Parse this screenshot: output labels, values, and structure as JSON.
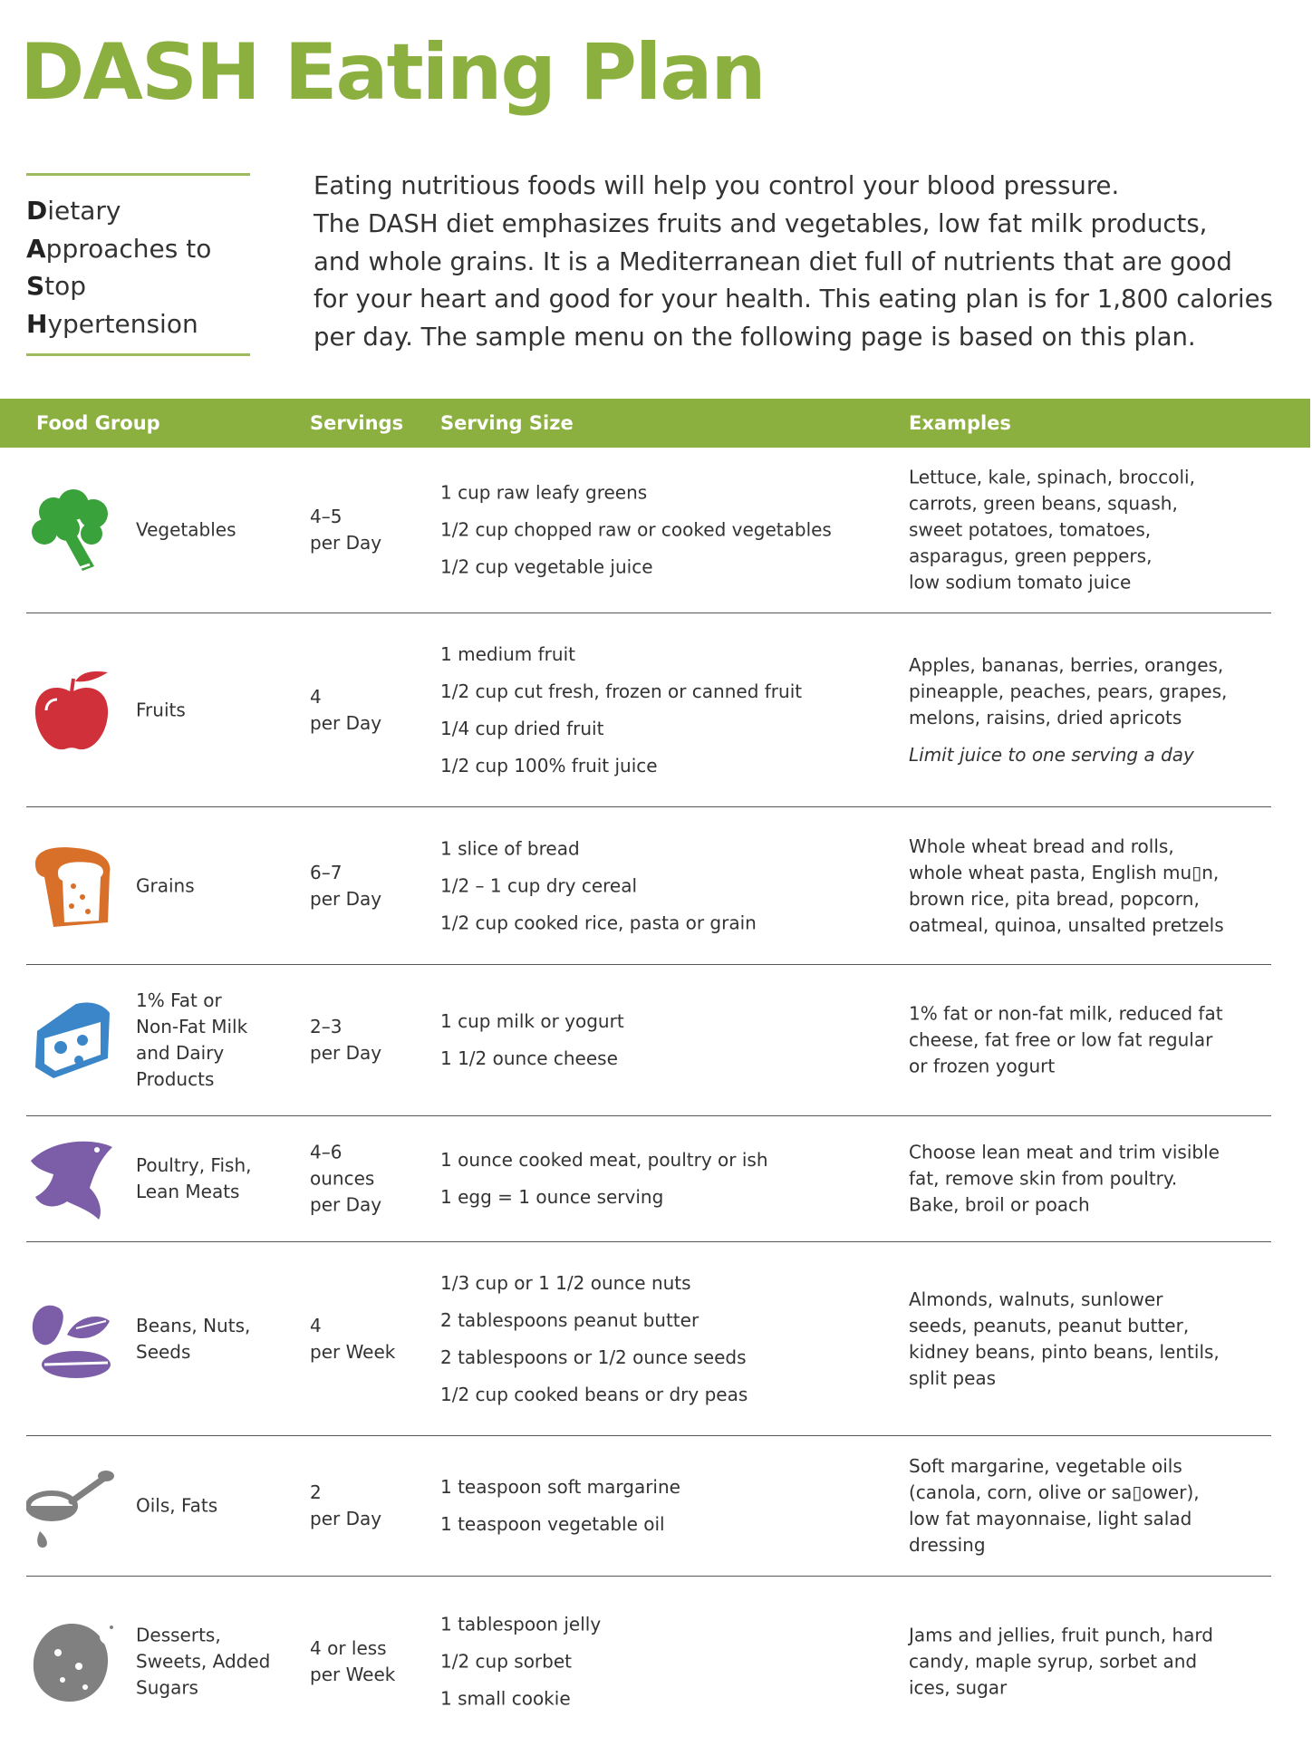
{
  "title": "DASH Eating Plan",
  "acronym": [
    {
      "initial": "D",
      "rest": "ietary"
    },
    {
      "initial": "A",
      "rest": "pproaches to"
    },
    {
      "initial": "S",
      "rest": "top"
    },
    {
      "initial": "H",
      "rest": "ypertension"
    }
  ],
  "intro": [
    "Eating nutritious foods will help you control your blood pressure.",
    "The DASH diet emphasizes fruits and vegetables, low fat milk products,",
    "and whole grains. It is a Mediterranean diet full of nutrients that are good",
    "for your heart and good for your health. This eating plan is for 1,800 calories",
    "per day. The sample menu on the following page is based on this plan."
  ],
  "colors": {
    "accent": "#8cb040",
    "vegetables": "#3aa23a",
    "fruits": "#d0303a",
    "grains": "#d9702a",
    "dairy": "#3a86c8",
    "protein": "#7b5ea7",
    "oils": "#808080"
  },
  "table": {
    "headers": [
      "Food Group",
      "Servings",
      "Serving Size",
      "Examples"
    ],
    "rows": [
      {
        "icon": "broccoli-icon",
        "group": [
          "Vegetables"
        ],
        "servings": [
          "4–5",
          "per Day"
        ],
        "sizes": [
          "1 cup raw leafy greens",
          "1/2 cup chopped raw or cooked vegetables",
          "1/2 cup vegetable juice"
        ],
        "examples": [
          "Lettuce, kale, spinach, broccoli,",
          "carrots, green beans, squash,",
          "sweet potatoes, tomatoes,",
          "asparagus, green peppers,",
          "low sodium tomato juice"
        ]
      },
      {
        "icon": "apple-icon",
        "group": [
          "Fruits"
        ],
        "servings": [
          "4",
          "per Day"
        ],
        "sizes": [
          "1 medium fruit",
          "1/2 cup cut fresh, frozen or canned fruit",
          "1/4 cup dried fruit",
          "1/2 cup 100% fruit juice"
        ],
        "examples": [
          "Apples, bananas, berries, oranges,",
          "pineapple, peaches, pears, grapes,",
          "melons, raisins, dried apricots"
        ],
        "note": "Limit juice to one serving a day"
      },
      {
        "icon": "bread-icon",
        "group": [
          "Grains"
        ],
        "servings": [
          "6–7",
          "per Day"
        ],
        "sizes": [
          "1 slice of bread",
          "1/2 – 1 cup dry cereal",
          "1/2 cup cooked rice, pasta or grain"
        ],
        "examples": [
          "Whole wheat bread and rolls,",
          "whole wheat pasta, English mu▯n,",
          "brown rice, pita bread, popcorn,",
          "oatmeal, quinoa, unsalted pretzels"
        ]
      },
      {
        "icon": "cheese-icon",
        "group": [
          "1% Fat or",
          "Non-Fat Milk",
          "and Dairy",
          "Products"
        ],
        "servings": [
          "2–3",
          "per Day"
        ],
        "sizes": [
          "1 cup milk or yogurt",
          "1 1/2 ounce cheese"
        ],
        "examples": [
          "1% fat or non-fat milk, reduced fat",
          "cheese, fat free or low fat regular",
          "or frozen yogurt"
        ]
      },
      {
        "icon": "fish-icon",
        "group": [
          "Poultry, Fish,",
          "Lean Meats"
        ],
        "servings": [
          "4–6",
          "ounces",
          "per Day"
        ],
        "sizes": [
          "1 ounce cooked meat, poultry or ish",
          "1 egg = 1 ounce serving"
        ],
        "examples": [
          "Choose lean meat and trim visible",
          "fat, remove skin from poultry.",
          "Bake, broil or poach"
        ]
      },
      {
        "icon": "beans-nuts-icon",
        "group": [
          "Beans, Nuts,",
          "Seeds"
        ],
        "servings": [
          "4",
          "per Week"
        ],
        "sizes": [
          "1/3 cup or 1 1/2 ounce nuts",
          "2 tablespoons peanut butter",
          "2 tablespoons or 1/2 ounce seeds",
          "1/2 cup cooked beans or dry peas"
        ],
        "examples": [
          "Almonds, walnuts, sunlower",
          "seeds, peanuts, peanut butter,",
          "kidney beans, pinto beans, lentils,",
          "split peas"
        ]
      },
      {
        "icon": "oil-ladle-icon",
        "group": [
          "Oils, Fats"
        ],
        "servings": [
          "2",
          "per Day"
        ],
        "sizes": [
          "1 teaspoon soft margarine",
          "1 teaspoon vegetable oil"
        ],
        "examples": [
          "Soft margarine, vegetable oils",
          "(canola, corn, olive or sa▯ower),",
          "low fat mayonnaise, light salad",
          "dressing"
        ]
      },
      {
        "icon": "cookie-icon",
        "group": [
          "Desserts,",
          "Sweets, Added",
          "Sugars"
        ],
        "servings": [
          "4 or less",
          "per Week"
        ],
        "sizes": [
          "1 tablespoon jelly",
          "1/2 cup sorbet",
          "1 small cookie"
        ],
        "examples": [
          "Jams and jellies, fruit punch, hard",
          "candy, maple syrup, sorbet and",
          "ices, sugar"
        ]
      }
    ]
  }
}
